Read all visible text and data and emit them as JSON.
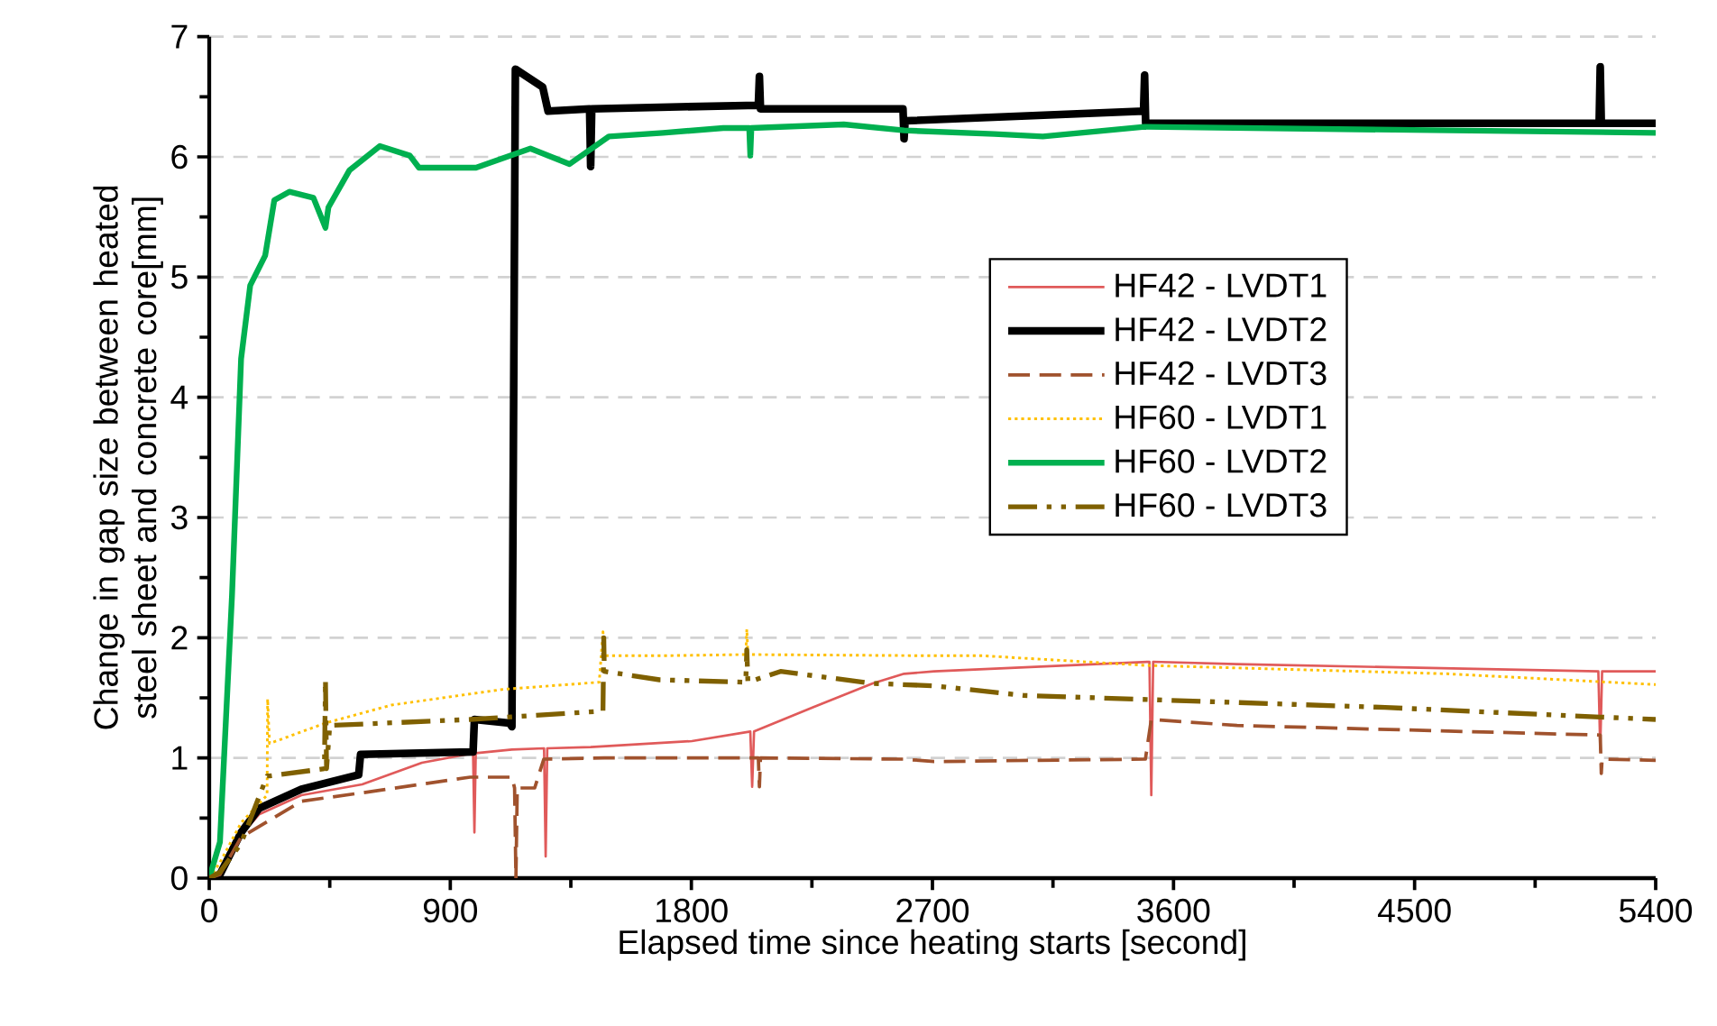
{
  "chart_data": {
    "type": "line",
    "xlabel": "Elapsed time since heating starts [second]",
    "ylabel": "Change in gap size between heated steel sheet and concrete core[mm]",
    "xlim": [
      0,
      5400
    ],
    "xticks": [
      0,
      900,
      1800,
      2700,
      3600,
      4500,
      5400
    ],
    "ylim": [
      0,
      7
    ],
    "yticks": [
      0,
      1,
      2,
      3,
      4,
      5,
      6,
      7
    ],
    "grid": "y",
    "legend": "right",
    "marker": "none",
    "series": [
      {
        "name": "HF42 - LVDT1",
        "color": "#e05a5a",
        "line_style": "solid",
        "x": [
          0,
          40,
          119,
          186,
          344,
          571,
          794,
          985,
          990,
          995,
          1130,
          1250,
          1256,
          1262,
          1424,
          1802,
          2020,
          2027,
          2034,
          2252,
          2477,
          2594,
          2706,
          3510,
          3517,
          3524,
          3837,
          5186,
          5193,
          5200,
          5400
        ],
        "values": [
          0,
          0.03,
          0.36,
          0.53,
          0.69,
          0.78,
          0.96,
          1.04,
          0.38,
          1.04,
          1.07,
          1.08,
          0.18,
          1.08,
          1.09,
          1.14,
          1.22,
          0.76,
          1.22,
          1.42,
          1.62,
          1.7,
          1.72,
          1.8,
          0.69,
          1.8,
          1.78,
          1.72,
          1.07,
          1.72,
          1.72
        ]
      },
      {
        "name": "HF42 - LVDT2",
        "color": "#000000",
        "line_style": "solid",
        "x": [
          0,
          40,
          119,
          186,
          344,
          558,
          565,
          985,
          990,
          1120,
          1130,
          1143,
          1245,
          1265,
          1420,
          1424,
          1428,
          2050,
          2054,
          2058,
          2590,
          2594,
          2598,
          3488,
          3492,
          3496,
          5189,
          5193,
          5197,
          5400
        ],
        "values": [
          0,
          0.03,
          0.38,
          0.58,
          0.74,
          0.86,
          1.03,
          1.05,
          1.32,
          1.29,
          1.26,
          6.73,
          6.58,
          6.38,
          6.4,
          5.92,
          6.4,
          6.43,
          6.67,
          6.4,
          6.4,
          6.15,
          6.3,
          6.38,
          6.68,
          6.28,
          6.28,
          6.75,
          6.28,
          6.28
        ]
      },
      {
        "name": "HF42 - LVDT3",
        "color": "#a0522d",
        "line_style": "dashed",
        "x": [
          0,
          40,
          119,
          344,
          571,
          974,
          1130,
          1140,
          1145,
          1150,
          1215,
          1249,
          1475,
          2050,
          2054,
          2058,
          2594,
          2706,
          3495,
          3517,
          3837,
          5193,
          5197,
          5200,
          5400
        ],
        "values": [
          0,
          0.03,
          0.34,
          0.64,
          0.71,
          0.84,
          0.84,
          0.75,
          0,
          0.75,
          0.75,
          0.99,
          1.0,
          1.0,
          0.76,
          1.0,
          0.99,
          0.97,
          0.99,
          1.32,
          1.27,
          1.19,
          0.87,
          0.99,
          0.98
        ]
      },
      {
        "name": "HF60 - LVDT1",
        "color": "#ffc000",
        "line_style": "dotted",
        "x": [
          0,
          40,
          119,
          216,
          218,
          225,
          434,
          681,
          1096,
          1456,
          1470,
          1475,
          1681,
          2003,
          2007,
          2011,
          2706,
          2887,
          3495,
          4620,
          5400
        ],
        "values": [
          0,
          0.13,
          0.46,
          0.69,
          1.49,
          1.12,
          1.29,
          1.44,
          1.57,
          1.63,
          2.05,
          1.85,
          1.85,
          1.86,
          2.07,
          1.86,
          1.85,
          1.85,
          1.77,
          1.7,
          1.61
        ]
      },
      {
        "name": "HF60 - LVDT2",
        "color": "#00b050",
        "line_style": "solid",
        "x": [
          0,
          40,
          85,
          119,
          153,
          209,
          243,
          299,
          389,
          434,
          445,
          524,
          637,
          749,
          783,
          996,
          1199,
          1345,
          1492,
          1694,
          1919,
          2016,
          2020,
          2024,
          2369,
          2594,
          2931,
          3112,
          3492,
          5400
        ],
        "values": [
          0,
          0.3,
          2.35,
          4.32,
          4.93,
          5.18,
          5.64,
          5.71,
          5.66,
          5.41,
          5.58,
          5.89,
          6.09,
          6.01,
          5.91,
          5.91,
          6.07,
          5.94,
          6.17,
          6.2,
          6.24,
          6.24,
          6.01,
          6.24,
          6.27,
          6.22,
          6.19,
          6.17,
          6.25,
          6.2
        ]
      },
      {
        "name": "HF60 - LVDT3",
        "color": "#7f6000",
        "line_style": "dashdot",
        "x": [
          0,
          40,
          119,
          216,
          225,
          430,
          434,
          438,
          450,
          974,
          1470,
          1473,
          1475,
          1681,
          2003,
          2007,
          2011,
          2133,
          2475,
          2706,
          3040,
          3715,
          4390,
          5193,
          5400
        ],
        "values": [
          0,
          0.05,
          0.29,
          0.85,
          0.85,
          0.91,
          1.65,
          0.91,
          1.27,
          1.32,
          1.39,
          2.0,
          1.72,
          1.65,
          1.63,
          1.9,
          1.63,
          1.72,
          1.62,
          1.6,
          1.52,
          1.47,
          1.42,
          1.34,
          1.32
        ]
      }
    ]
  }
}
